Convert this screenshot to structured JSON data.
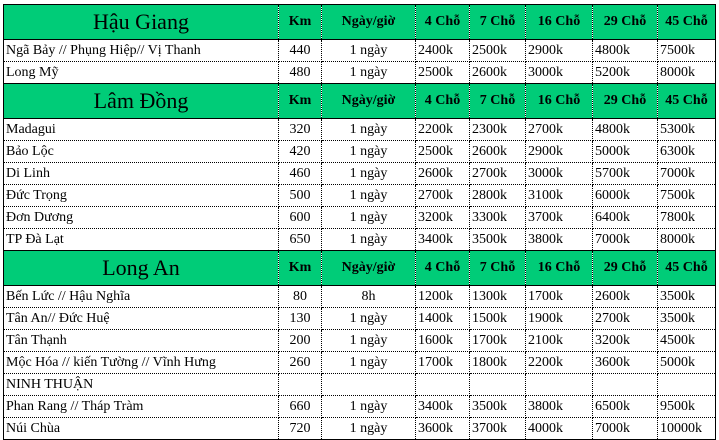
{
  "columns": [
    "Km",
    "Ngày/giờ",
    "4 Chỗ",
    "7 Chỗ",
    "16 Chỗ",
    "29 Chỗ",
    "45 Chỗ"
  ],
  "header_color": "#00cc78",
  "sections": [
    {
      "region": "Hậu Giang",
      "rows": [
        {
          "name": "Ngã Bảy // Phụng Hiệp// Vị Thanh",
          "km": "440",
          "time": "1 ngày",
          "prices": [
            "2400k",
            "2500k",
            "2900k",
            "4800k",
            "7500k"
          ]
        },
        {
          "name": "Long Mỹ",
          "km": "480",
          "time": "1 ngày",
          "prices": [
            "2500k",
            "2600k",
            "3000k",
            "5200k",
            "8000k"
          ]
        }
      ]
    },
    {
      "region": "Lâm Đồng",
      "rows": [
        {
          "name": "Madagui",
          "km": "320",
          "time": "1 ngày",
          "prices": [
            "2200k",
            "2300k",
            "2700k",
            "4800k",
            "5300k"
          ]
        },
        {
          "name": "Bảo Lộc",
          "km": "420",
          "time": "1 ngày",
          "prices": [
            "2500k",
            "2600k",
            "2900k",
            "5000k",
            "6300k"
          ]
        },
        {
          "name": "Di Linh",
          "km": "460",
          "time": "1 ngày",
          "prices": [
            "2600k",
            "2700k",
            "3000k",
            "5700k",
            "7000k"
          ]
        },
        {
          "name": "Đức Trọng",
          "km": "500",
          "time": "1 ngày",
          "prices": [
            "2700k",
            "2800k",
            "3100k",
            "6000k",
            "7500k"
          ]
        },
        {
          "name": "Đơn Dương",
          "km": "600",
          "time": "1 ngày",
          "prices": [
            "3200k",
            "3300k",
            "3700k",
            "6400k",
            "7800k"
          ]
        },
        {
          "name": "TP Đà Lạt",
          "km": "650",
          "time": "1 ngày",
          "prices": [
            "3400k",
            "3500k",
            "3800k",
            "7000k",
            "8000k"
          ]
        }
      ]
    },
    {
      "region": "Long An",
      "rows": [
        {
          "name": "Bến Lức // Hậu Nghĩa",
          "km": "80",
          "time": "8h",
          "prices": [
            "1200k",
            "1300k",
            "1700k",
            "2600k",
            "3500k"
          ]
        },
        {
          "name": "Tân An// Đức Huệ",
          "km": "130",
          "time": "1 ngày",
          "prices": [
            "1400k",
            "1500k",
            "1900k",
            "2700k",
            "3500k"
          ]
        },
        {
          "name": "Tân Thạnh",
          "km": "200",
          "time": "1 ngày",
          "prices": [
            "1600k",
            "1700k",
            "2100k",
            "3200k",
            "4500k"
          ]
        },
        {
          "name": "Mộc Hóa // kiến Tường // Vĩnh Hưng",
          "km": "260",
          "time": "1 ngày",
          "prices": [
            "1700k",
            "1800k",
            "2200k",
            "3600k",
            "5000k"
          ]
        },
        {
          "name": "NINH THUẬN",
          "km": "",
          "time": "",
          "prices": [
            "",
            "",
            "",
            "",
            ""
          ]
        },
        {
          "name": "Phan Rang // Tháp Tràm",
          "km": "660",
          "time": "1 ngày",
          "prices": [
            "3400k",
            "3500k",
            "3800k",
            "6500k",
            "9500k"
          ]
        },
        {
          "name": "Núi Chùa",
          "km": "720",
          "time": "1 ngày",
          "prices": [
            "3600k",
            "3700k",
            "4000k",
            "7000k",
            "10000k"
          ]
        }
      ]
    }
  ]
}
